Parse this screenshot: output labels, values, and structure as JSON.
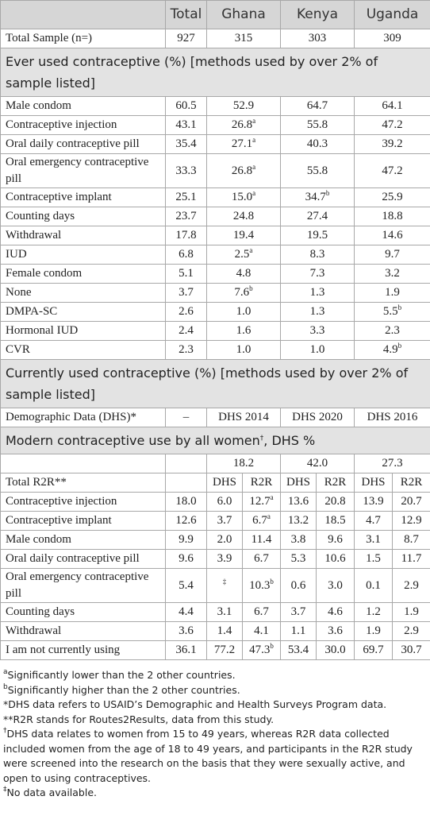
{
  "table": {
    "header": [
      "Total",
      "Ghana",
      "Kenya",
      "Uganda"
    ],
    "sample_row": [
      "Total Sample (n=)",
      "927",
      "315",
      "303",
      "309"
    ],
    "ever_used": {
      "title": "Ever used contraceptive (%) [methods used by over 2% of sample listed]",
      "rows": [
        [
          "Male condom",
          "60.5",
          "52.9",
          "64.7",
          "64.1"
        ],
        [
          "Contraceptive injection",
          "43.1",
          {
            "text": "26.8",
            "sup": "a"
          },
          "55.8",
          "47.2"
        ],
        [
          "Oral daily contraceptive pill",
          "35.4",
          {
            "text": "27.1",
            "sup": "a"
          },
          "40.3",
          "39.2"
        ],
        [
          "Oral emergency contraceptive pill",
          "33.3",
          {
            "text": "26.8",
            "sup": "a"
          },
          "55.8",
          "47.2"
        ],
        [
          "Contraceptive implant",
          "25.1",
          {
            "text": "15.0",
            "sup": "a"
          },
          {
            "text": "34.7",
            "sup": "b"
          },
          "25.9"
        ],
        [
          "Counting days",
          "23.7",
          "24.8",
          "27.4",
          "18.8"
        ],
        [
          "Withdrawal",
          "17.8",
          "19.4",
          "19.5",
          "14.6"
        ],
        [
          "IUD",
          "6.8",
          {
            "text": "2.5",
            "sup": "a"
          },
          "8.3",
          "9.7"
        ],
        [
          "Female condom",
          "5.1",
          "4.8",
          "7.3",
          "3.2"
        ],
        [
          "None",
          "3.7",
          {
            "text": "7.6",
            "sup": "b"
          },
          "1.3",
          "1.9"
        ],
        [
          "DMPA-SC",
          "2.6",
          "1.0",
          "1.3",
          {
            "text": "5.5",
            "sup": "b"
          }
        ],
        [
          "Hormonal IUD",
          "2.4",
          "1.6",
          "3.3",
          "2.3"
        ],
        [
          "CVR",
          "2.3",
          "1.0",
          "1.0",
          {
            "text": "4.9",
            "sup": "b"
          }
        ]
      ]
    },
    "currently_used": {
      "title": "Currently used contraceptive (%) [methods used by over 2% of sample listed]",
      "rows": [
        [
          "Demographic Data (DHS)*",
          "–",
          "DHS 2014",
          "DHS 2020",
          "DHS 2016"
        ]
      ]
    },
    "modern_use": {
      "title": {
        "text": "Modern contraceptive use by all women",
        "sup": "†",
        "after": ", DHS %"
      },
      "totals": [
        "18.2",
        "42.0",
        "27.3"
      ],
      "subheader": [
        "Total R2R**",
        "DHS",
        "R2R",
        "DHS",
        "R2R",
        "DHS",
        "R2R"
      ],
      "rows": [
        [
          "Contraceptive injection",
          "18.0",
          "6.0",
          {
            "text": "12.7",
            "sup": "a"
          },
          "13.6",
          "20.8",
          "13.9",
          "20.7"
        ],
        [
          "Contraceptive implant",
          "12.6",
          "3.7",
          {
            "text": "6.7",
            "sup": "a"
          },
          "13.2",
          "18.5",
          "4.7",
          "12.9"
        ],
        [
          "Male condom",
          "9.9",
          "2.0",
          "11.4",
          "3.8",
          "9.6",
          "3.1",
          "8.7"
        ],
        [
          "Oral daily contraceptive pill",
          "9.6",
          "3.9",
          "6.7",
          "5.3",
          "10.6",
          "1.5",
          "11.7"
        ],
        [
          "Oral emergency contraceptive pill",
          "5.4",
          {
            "sup": "‡"
          },
          {
            "text": "10.3",
            "sup": "b"
          },
          "0.6",
          "3.0",
          "0.1",
          "2.9"
        ],
        [
          "Counting days",
          "4.4",
          "3.1",
          "6.7",
          "3.7",
          "4.6",
          "1.2",
          "1.9"
        ],
        [
          "Withdrawal",
          "3.6",
          "1.4",
          "4.1",
          "1.1",
          "3.6",
          "1.9",
          "2.9"
        ],
        [
          "I am not currently using",
          "36.1",
          "77.2",
          {
            "text": "47.3",
            "sup": "b"
          },
          "53.4",
          "30.0",
          "69.7",
          "30.7"
        ]
      ]
    },
    "footnotes": [
      {
        "sup": "a",
        "text": "Significantly lower than the 2 other countries."
      },
      {
        "sup": "b",
        "text": "Significantly higher than the 2 other countries."
      },
      "*DHS data refers to USAID’s Demographic and Health Surveys Program data.",
      "**R2R stands for Routes2Results, data from this study.",
      {
        "sup": "†",
        "text": "DHS data relates to women from 15 to 49 years, whereas R2R data collected included women from the age of 18 to 49 years, and participants in the R2R study were screened into the research on the basis that they were sexually active, and open to using contraceptives."
      },
      {
        "sup": "‡",
        "text": "No data available."
      }
    ]
  }
}
